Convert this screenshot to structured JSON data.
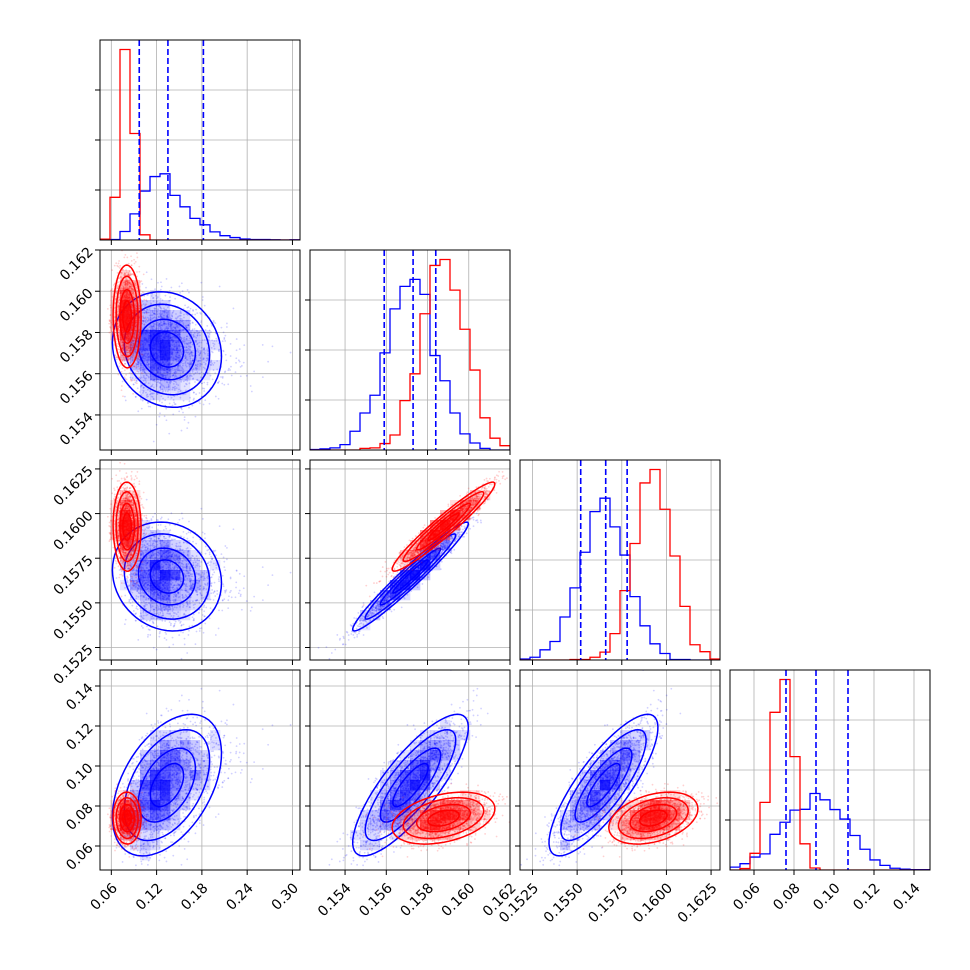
{
  "figure": {
    "colors": {
      "blue": "#0000ff",
      "red": "#ff0000",
      "grid": "#b0b0b0"
    }
  },
  "chart_data": {
    "type": "corner",
    "grid": true,
    "legend": "none",
    "variables": [
      {
        "range": [
          0.045,
          0.31
        ],
        "ticks": [
          0.06,
          0.12,
          0.18,
          0.24,
          0.3
        ],
        "tick_labels": [
          "0.06",
          "0.12",
          "0.18",
          "0.24",
          "0.30"
        ]
      },
      {
        "range": [
          0.1523,
          0.162
        ],
        "ticks": [
          0.154,
          0.156,
          0.158,
          0.16,
          0.162
        ],
        "tick_labels": [
          "0.154",
          "0.156",
          "0.158",
          "0.160",
          "0.162"
        ]
      },
      {
        "range": [
          0.1518,
          0.163
        ],
        "ticks": [
          0.1525,
          0.155,
          0.1575,
          0.16,
          0.1625
        ],
        "tick_labels": [
          "0.1525",
          "0.1550",
          "0.1575",
          "0.1600",
          "0.1625"
        ]
      },
      {
        "range": [
          0.048,
          0.148
        ],
        "ticks": [
          0.06,
          0.08,
          0.1,
          0.12,
          0.14
        ],
        "tick_labels": [
          "0.06",
          "0.08",
          "0.10",
          "0.12",
          "0.14"
        ]
      }
    ],
    "series": [
      {
        "color": "#0000ff",
        "mean": [
          0.135,
          0.1572,
          0.1565,
          0.091
        ],
        "sd": [
          0.043,
          0.0012,
          0.0013,
          0.015
        ],
        "corr": [
          [
            1,
            -0.15,
            -0.15,
            0.45
          ],
          [
            -0.15,
            1,
            0.97,
            0.8
          ],
          [
            -0.15,
            0.97,
            1,
            0.8
          ],
          [
            0.45,
            0.8,
            0.8,
            1
          ]
        ],
        "skew_first": true,
        "quantiles": [
          [
            0.097,
            0.135,
            0.182
          ],
          [
            0.1559,
            0.1573,
            0.1584
          ],
          [
            0.1552,
            0.1566,
            0.1578
          ],
          [
            0.076,
            0.091,
            0.107
          ]
        ]
      },
      {
        "color": "#ff0000",
        "mean": [
          0.081,
          0.1588,
          0.1593,
          0.074
        ],
        "sd": [
          0.008,
          0.0011,
          0.0011,
          0.0055
        ],
        "corr": [
          [
            1,
            0.0,
            0.0,
            0.0
          ],
          [
            0.0,
            1,
            0.96,
            0.35
          ],
          [
            0.0,
            0.96,
            1,
            0.35
          ],
          [
            0.0,
            0.35,
            0.35,
            1
          ]
        ],
        "skew_first": false,
        "quantiles": null
      }
    ]
  }
}
